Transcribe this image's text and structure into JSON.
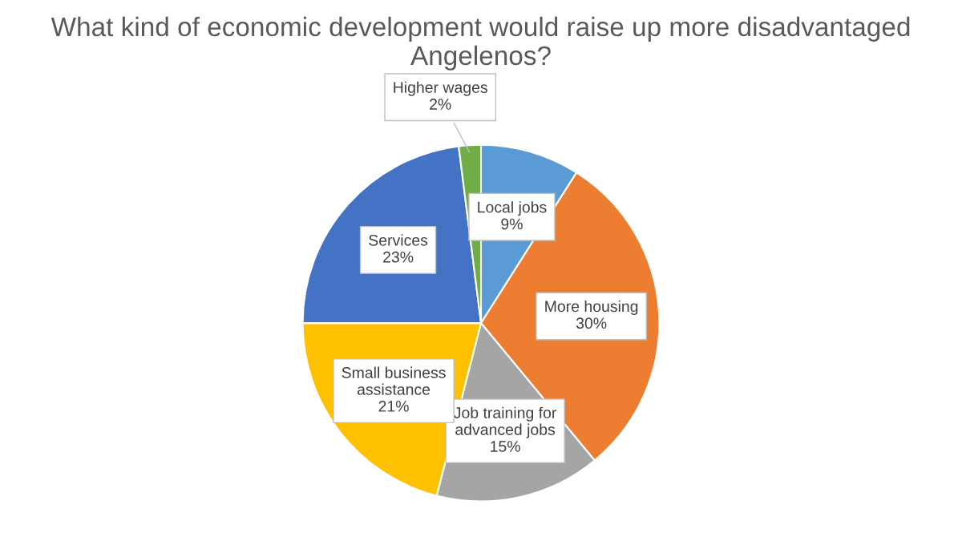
{
  "chart_data": {
    "type": "pie",
    "title": "What kind of economic development would raise up more disadvantaged Angelenos?",
    "categories": [
      "Local jobs",
      "More housing",
      "Job training for advanced jobs",
      "Small business assistance",
      "Services",
      "Higher wages"
    ],
    "values": [
      9,
      30,
      15,
      21,
      23,
      2
    ],
    "value_labels": [
      "9%",
      "30%",
      "15%",
      "21%",
      "23%",
      "2%"
    ],
    "colors": [
      "#5b9bd5",
      "#ed7d31",
      "#a5a5a5",
      "#ffc000",
      "#4472c4",
      "#70ad47"
    ],
    "legend": false
  }
}
